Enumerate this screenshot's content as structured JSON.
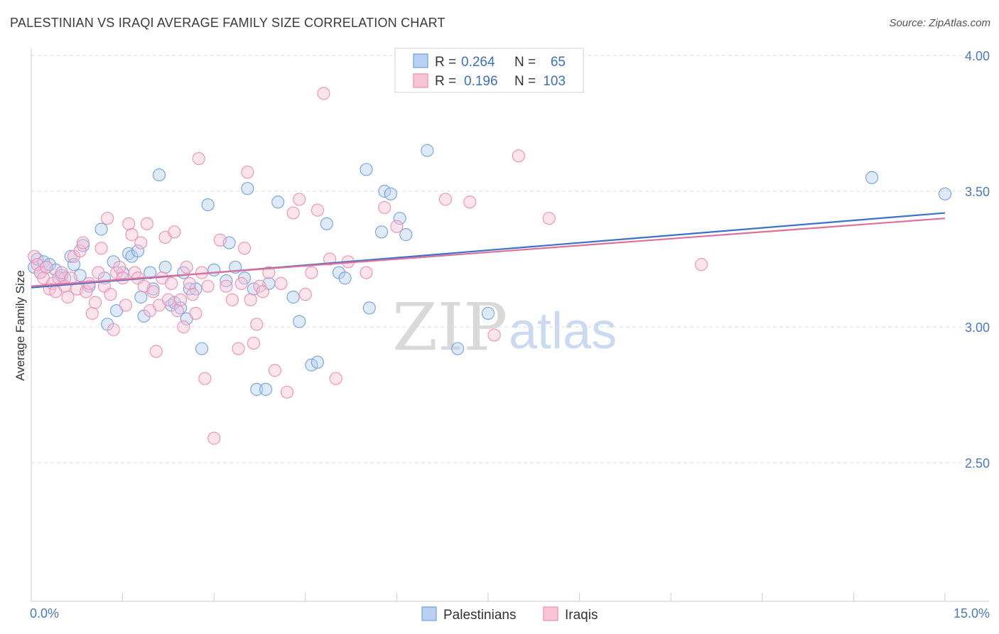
{
  "header": {
    "title": "PALESTINIAN VS IRAQI AVERAGE FAMILY SIZE CORRELATION CHART",
    "source": "Source: ZipAtlas.com"
  },
  "chart_data": {
    "type": "scatter",
    "ylabel": "Average Family Size",
    "xlim": [
      0,
      15
    ],
    "ylim": [
      2.05,
      4.08
    ],
    "x_tick_labels": [
      {
        "value": 0,
        "label": "0.0%"
      },
      {
        "value": 15,
        "label": "15.0%"
      }
    ],
    "y_ticks": [
      {
        "value": 2.5,
        "label": "2.50"
      },
      {
        "value": 3.0,
        "label": "3.00"
      },
      {
        "value": 3.5,
        "label": "3.50"
      },
      {
        "value": 4.0,
        "label": "4.00"
      }
    ],
    "grid": "horizontal dashed",
    "legend_position": "top-center",
    "watermark": {
      "zip": "ZIP",
      "atlas": "atlas"
    },
    "stats": [
      {
        "r_label": "R =",
        "r": "0.264",
        "n_label": "N =",
        "n": "65"
      },
      {
        "r_label": "R =",
        "r": "0.196",
        "n_label": "N =",
        "n": "103"
      }
    ],
    "series": [
      {
        "name": "Palestinians",
        "color": "#6f9fe0",
        "fill": "#b8d0f2",
        "line_color": "#3a72cc",
        "trend": [
          [
            0,
            3.145
          ],
          [
            15,
            3.42
          ]
        ],
        "points": [
          [
            0.05,
            3.22
          ],
          [
            0.1,
            3.25
          ],
          [
            0.15,
            3.2
          ],
          [
            0.2,
            3.24
          ],
          [
            0.25,
            3.22
          ],
          [
            0.3,
            3.23
          ],
          [
            0.4,
            3.21
          ],
          [
            0.5,
            3.19
          ],
          [
            0.55,
            3.18
          ],
          [
            0.65,
            3.26
          ],
          [
            0.7,
            3.23
          ],
          [
            0.8,
            3.19
          ],
          [
            0.85,
            3.3
          ],
          [
            0.95,
            3.15
          ],
          [
            1.15,
            3.36
          ],
          [
            1.2,
            3.18
          ],
          [
            1.25,
            3.01
          ],
          [
            1.35,
            3.24
          ],
          [
            1.4,
            3.06
          ],
          [
            1.5,
            3.2
          ],
          [
            1.6,
            3.27
          ],
          [
            1.65,
            3.26
          ],
          [
            1.75,
            3.28
          ],
          [
            1.8,
            3.11
          ],
          [
            1.85,
            3.04
          ],
          [
            1.95,
            3.2
          ],
          [
            2.0,
            3.14
          ],
          [
            2.1,
            3.56
          ],
          [
            2.2,
            3.22
          ],
          [
            2.3,
            3.08
          ],
          [
            2.35,
            3.09
          ],
          [
            2.45,
            3.07
          ],
          [
            2.5,
            3.2
          ],
          [
            2.55,
            3.03
          ],
          [
            2.6,
            3.14
          ],
          [
            2.7,
            3.14
          ],
          [
            2.8,
            2.92
          ],
          [
            2.9,
            3.45
          ],
          [
            3.0,
            3.21
          ],
          [
            3.2,
            3.17
          ],
          [
            3.25,
            3.31
          ],
          [
            3.35,
            3.22
          ],
          [
            3.5,
            3.18
          ],
          [
            3.55,
            3.51
          ],
          [
            3.65,
            3.14
          ],
          [
            3.7,
            2.77
          ],
          [
            3.85,
            2.77
          ],
          [
            3.9,
            3.16
          ],
          [
            4.05,
            3.46
          ],
          [
            4.3,
            3.11
          ],
          [
            4.4,
            3.02
          ],
          [
            4.6,
            2.86
          ],
          [
            4.7,
            2.87
          ],
          [
            4.85,
            3.38
          ],
          [
            5.05,
            3.2
          ],
          [
            5.15,
            3.18
          ],
          [
            5.5,
            3.58
          ],
          [
            5.55,
            3.07
          ],
          [
            5.75,
            3.35
          ],
          [
            5.8,
            3.5
          ],
          [
            5.9,
            3.49
          ],
          [
            6.05,
            3.4
          ],
          [
            6.15,
            3.34
          ],
          [
            6.5,
            3.65
          ],
          [
            7.0,
            2.92
          ],
          [
            7.5,
            3.05
          ],
          [
            13.8,
            3.55
          ],
          [
            15.0,
            3.49
          ]
        ]
      },
      {
        "name": "Iraqis",
        "color": "#f08cb0",
        "fill": "#f8c4d6",
        "line_color": "#e0709a",
        "trend": [
          [
            0,
            3.15
          ],
          [
            15,
            3.4
          ]
        ],
        "points": [
          [
            0.05,
            3.26
          ],
          [
            0.1,
            3.23
          ],
          [
            0.15,
            3.2
          ],
          [
            0.2,
            3.18
          ],
          [
            0.25,
            3.22
          ],
          [
            0.3,
            3.14
          ],
          [
            0.35,
            3.16
          ],
          [
            0.4,
            3.13
          ],
          [
            0.45,
            3.18
          ],
          [
            0.5,
            3.2
          ],
          [
            0.55,
            3.15
          ],
          [
            0.6,
            3.11
          ],
          [
            0.65,
            3.18
          ],
          [
            0.7,
            3.26
          ],
          [
            0.75,
            3.14
          ],
          [
            0.8,
            3.28
          ],
          [
            0.85,
            3.31
          ],
          [
            0.9,
            3.13
          ],
          [
            0.95,
            3.16
          ],
          [
            1.0,
            3.05
          ],
          [
            1.05,
            3.09
          ],
          [
            1.1,
            3.2
          ],
          [
            1.15,
            3.29
          ],
          [
            1.2,
            3.15
          ],
          [
            1.25,
            3.4
          ],
          [
            1.3,
            3.12
          ],
          [
            1.35,
            2.99
          ],
          [
            1.4,
            3.2
          ],
          [
            1.45,
            3.22
          ],
          [
            1.5,
            3.18
          ],
          [
            1.55,
            3.08
          ],
          [
            1.6,
            3.38
          ],
          [
            1.65,
            3.34
          ],
          [
            1.7,
            3.2
          ],
          [
            1.75,
            3.18
          ],
          [
            1.8,
            3.31
          ],
          [
            1.85,
            3.15
          ],
          [
            1.9,
            3.38
          ],
          [
            1.95,
            3.06
          ],
          [
            2.0,
            3.13
          ],
          [
            2.05,
            2.91
          ],
          [
            2.1,
            3.08
          ],
          [
            2.15,
            3.18
          ],
          [
            2.2,
            3.33
          ],
          [
            2.25,
            3.1
          ],
          [
            2.3,
            3.16
          ],
          [
            2.35,
            3.35
          ],
          [
            2.4,
            3.06
          ],
          [
            2.45,
            3.1
          ],
          [
            2.5,
            3.0
          ],
          [
            2.55,
            3.22
          ],
          [
            2.6,
            3.16
          ],
          [
            2.65,
            3.12
          ],
          [
            2.7,
            3.05
          ],
          [
            2.75,
            3.62
          ],
          [
            2.8,
            3.2
          ],
          [
            2.85,
            2.81
          ],
          [
            2.9,
            3.15
          ],
          [
            3.0,
            2.59
          ],
          [
            3.1,
            3.32
          ],
          [
            3.2,
            3.15
          ],
          [
            3.3,
            3.1
          ],
          [
            3.4,
            2.92
          ],
          [
            3.45,
            3.16
          ],
          [
            3.5,
            3.29
          ],
          [
            3.55,
            3.57
          ],
          [
            3.6,
            3.1
          ],
          [
            3.65,
            2.94
          ],
          [
            3.7,
            3.01
          ],
          [
            3.75,
            3.15
          ],
          [
            3.8,
            3.13
          ],
          [
            3.9,
            3.2
          ],
          [
            4.0,
            2.84
          ],
          [
            4.1,
            3.16
          ],
          [
            4.2,
            2.76
          ],
          [
            4.3,
            3.42
          ],
          [
            4.4,
            3.47
          ],
          [
            4.5,
            3.12
          ],
          [
            4.6,
            3.2
          ],
          [
            4.7,
            3.43
          ],
          [
            4.8,
            3.86
          ],
          [
            4.9,
            3.25
          ],
          [
            5.0,
            2.81
          ],
          [
            5.2,
            3.24
          ],
          [
            5.5,
            3.2
          ],
          [
            5.8,
            3.44
          ],
          [
            6.0,
            3.37
          ],
          [
            6.8,
            3.47
          ],
          [
            7.2,
            3.46
          ],
          [
            7.6,
            2.97
          ],
          [
            8.0,
            3.63
          ],
          [
            8.5,
            3.4
          ],
          [
            11.0,
            3.23
          ]
        ]
      }
    ]
  }
}
